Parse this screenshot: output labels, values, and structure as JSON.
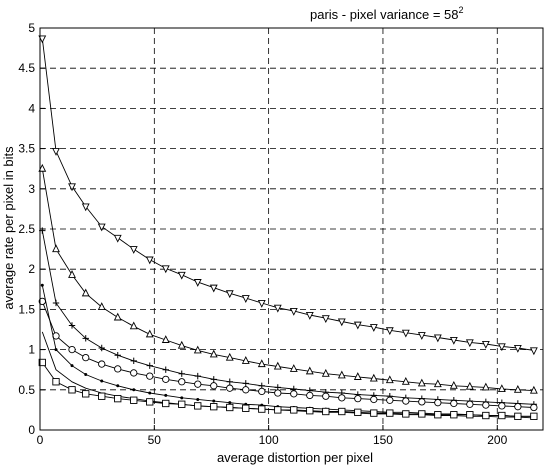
{
  "chart_data": {
    "type": "line",
    "title": "paris - pixel variance = 58",
    "title_superscript": "2",
    "xlabel": "average distortion per pixel",
    "ylabel": "average rate per pixel in bits",
    "xlim": [
      0,
      220
    ],
    "ylim": [
      0,
      5
    ],
    "xticks": [
      0,
      50,
      100,
      150,
      200
    ],
    "yticks": [
      0,
      0.5,
      1,
      1.5,
      2,
      2.5,
      3,
      3.5,
      4,
      4.5,
      5
    ],
    "xtick_labels": [
      "0",
      "50",
      "100",
      "150",
      "200"
    ],
    "ytick_labels": [
      "0",
      "0.5",
      "1",
      "1.5",
      "2",
      "2.5",
      "3",
      "3.5",
      "4",
      "4.5",
      "5"
    ],
    "grid": true,
    "legend": "none",
    "color": "#000000",
    "series": [
      {
        "marker": "triangle-down",
        "x": [
          1,
          7,
          14,
          20,
          27,
          34,
          41,
          48,
          55,
          62,
          69,
          76,
          83,
          90,
          97,
          104,
          111,
          118,
          125,
          132,
          139,
          146,
          153,
          160,
          167,
          174,
          181,
          188,
          195,
          202,
          209,
          216
        ],
        "y": [
          4.87,
          3.47,
          3.03,
          2.78,
          2.53,
          2.39,
          2.25,
          2.12,
          2.01,
          1.93,
          1.84,
          1.77,
          1.7,
          1.64,
          1.58,
          1.52,
          1.48,
          1.43,
          1.39,
          1.35,
          1.31,
          1.28,
          1.24,
          1.21,
          1.18,
          1.15,
          1.12,
          1.09,
          1.07,
          1.04,
          1.02,
          0.99
        ]
      },
      {
        "marker": "triangle-up",
        "x": [
          1,
          7,
          14,
          20,
          27,
          34,
          41,
          48,
          55,
          62,
          69,
          76,
          83,
          90,
          97,
          104,
          111,
          118,
          125,
          132,
          139,
          146,
          153,
          160,
          167,
          174,
          181,
          188,
          195,
          202,
          209,
          216
        ],
        "y": [
          3.25,
          2.25,
          1.93,
          1.7,
          1.53,
          1.4,
          1.29,
          1.19,
          1.12,
          1.05,
          0.99,
          0.94,
          0.9,
          0.86,
          0.82,
          0.79,
          0.76,
          0.73,
          0.7,
          0.68,
          0.66,
          0.64,
          0.62,
          0.6,
          0.58,
          0.57,
          0.55,
          0.54,
          0.53,
          0.51,
          0.5,
          0.49
        ]
      },
      {
        "marker": "plus",
        "x": [
          1,
          7,
          14,
          20,
          27,
          34,
          41,
          48,
          55,
          62,
          69,
          76,
          83,
          90,
          97,
          104,
          111,
          118,
          125,
          132,
          139,
          146,
          153,
          160,
          167,
          174,
          181,
          188,
          195,
          202,
          209,
          216
        ],
        "y": [
          2.48,
          1.58,
          1.3,
          1.14,
          1.02,
          0.93,
          0.86,
          0.8,
          0.75,
          0.7,
          0.67,
          0.63,
          0.6,
          0.58,
          0.55,
          0.53,
          0.51,
          0.49,
          0.47,
          0.46,
          0.44,
          0.43,
          0.42,
          0.4,
          0.39,
          0.38,
          0.37,
          0.36,
          0.35,
          0.34,
          0.33,
          0.32
        ]
      },
      {
        "marker": "circle",
        "x": [
          1,
          7,
          14,
          20,
          27,
          34,
          41,
          48,
          55,
          62,
          69,
          76,
          83,
          90,
          97,
          104,
          111,
          118,
          125,
          132,
          139,
          146,
          153,
          160,
          167,
          174,
          181,
          188,
          195,
          202,
          209,
          216
        ],
        "y": [
          1.6,
          1.17,
          1.0,
          0.9,
          0.82,
          0.76,
          0.71,
          0.67,
          0.63,
          0.6,
          0.57,
          0.55,
          0.52,
          0.5,
          0.48,
          0.46,
          0.45,
          0.43,
          0.42,
          0.4,
          0.39,
          0.38,
          0.37,
          0.36,
          0.35,
          0.34,
          0.33,
          0.32,
          0.31,
          0.3,
          0.29,
          0.28
        ]
      },
      {
        "marker": "dot",
        "x": [
          1,
          7,
          14,
          20,
          27,
          34,
          41,
          48,
          55,
          62,
          69,
          76,
          83,
          90,
          97,
          104,
          111,
          118,
          125,
          132,
          139,
          146,
          153,
          160,
          167,
          174,
          181,
          188,
          195,
          202,
          209,
          216
        ],
        "y": [
          1.8,
          1.0,
          0.8,
          0.69,
          0.61,
          0.55,
          0.5,
          0.46,
          0.43,
          0.4,
          0.38,
          0.36,
          0.34,
          0.32,
          0.31,
          0.29,
          0.28,
          0.27,
          0.26,
          0.25,
          0.24,
          0.23,
          0.22,
          0.22,
          0.21,
          0.2,
          0.2,
          0.19,
          0.18,
          0.18,
          0.17,
          0.17
        ]
      },
      {
        "marker": "none",
        "x": [
          1,
          7,
          14,
          20,
          27,
          34,
          41,
          48,
          55,
          62,
          69,
          76,
          83,
          90,
          97,
          104,
          111,
          118,
          125,
          132,
          139,
          146,
          153,
          160,
          167,
          174,
          181,
          188,
          195,
          202,
          209,
          216
        ],
        "y": [
          1.22,
          0.75,
          0.6,
          0.52,
          0.46,
          0.42,
          0.39,
          0.36,
          0.34,
          0.32,
          0.3,
          0.29,
          0.28,
          0.27,
          0.26,
          0.25,
          0.24,
          0.23,
          0.22,
          0.22,
          0.21,
          0.2,
          0.2,
          0.19,
          0.19,
          0.18,
          0.18,
          0.17,
          0.17,
          0.16,
          0.16,
          0.15
        ]
      },
      {
        "marker": "square",
        "x": [
          1,
          7,
          14,
          20,
          27,
          34,
          41,
          48,
          55,
          62,
          69,
          76,
          83,
          90,
          97,
          104,
          111,
          118,
          125,
          132,
          139,
          146,
          153,
          160,
          167,
          174,
          181,
          188,
          195,
          202,
          209,
          216
        ],
        "y": [
          0.84,
          0.6,
          0.5,
          0.45,
          0.42,
          0.39,
          0.37,
          0.35,
          0.33,
          0.32,
          0.3,
          0.29,
          0.28,
          0.27,
          0.26,
          0.25,
          0.25,
          0.24,
          0.23,
          0.23,
          0.22,
          0.21,
          0.21,
          0.2,
          0.2,
          0.19,
          0.19,
          0.19,
          0.18,
          0.18,
          0.17,
          0.17
        ]
      }
    ]
  }
}
